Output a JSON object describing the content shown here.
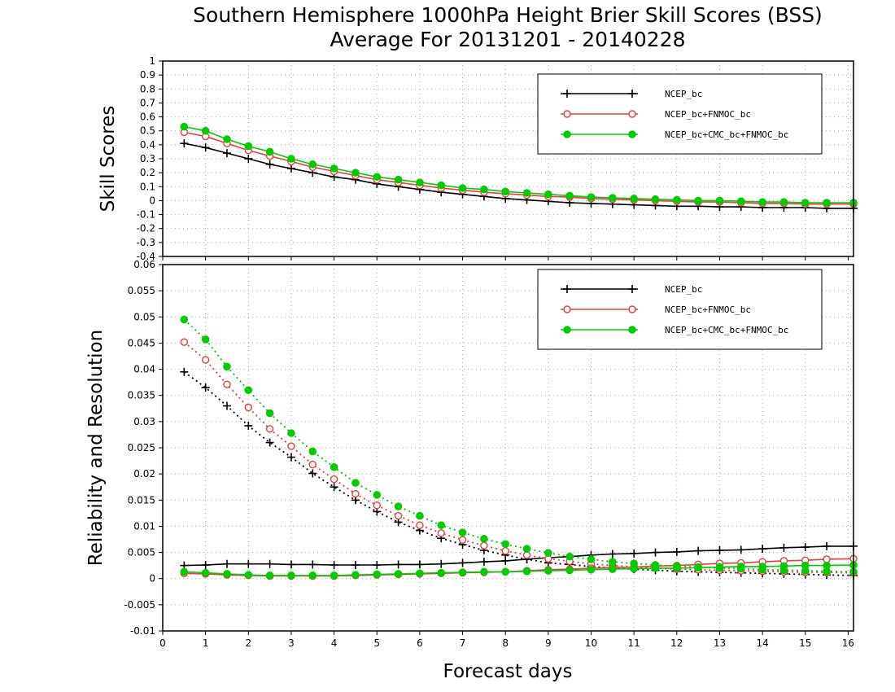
{
  "title": {
    "line1": "Southern Hemisphere 1000hPa Height Brier Skill Scores (BSS)",
    "line2": "Average For 20131201 - 20140228"
  },
  "xlabel": "Forecast days",
  "colors": {
    "ncep": "#000000",
    "fnmoc": "#ee3b3b",
    "cmc": "#00cc00"
  },
  "chart_data": [
    {
      "type": "line",
      "ylabel": "Skill Scores",
      "xlim": [
        0,
        16.125
      ],
      "ylim": [
        -0.4,
        1
      ],
      "yticks": [
        -0.4,
        -0.3,
        -0.2,
        -0.1,
        0,
        0.1,
        0.2,
        0.3,
        0.4,
        0.5,
        0.6,
        0.7,
        0.8,
        0.9,
        1
      ],
      "yticklabels": [
        "-0.4",
        "-0.3",
        "-0.2",
        "-0.1",
        "0",
        "0.1",
        "0.2",
        "0.3",
        "0.4",
        "0.5",
        "0.6",
        "0.7",
        "0.8",
        "0.9",
        "1"
      ],
      "grid": true,
      "legend_position": "top-right",
      "x": [
        0.5,
        1,
        1.5,
        2,
        2.5,
        3,
        3.5,
        4,
        4.5,
        5,
        5.5,
        6,
        6.5,
        7,
        7.5,
        8,
        8.5,
        9,
        9.5,
        10,
        10.5,
        11,
        11.5,
        12,
        12.5,
        13,
        13.5,
        14,
        14.5,
        15,
        15.5,
        16.125
      ],
      "series": [
        {
          "name": "NCEP_bc",
          "marker": "plus",
          "color": "#000000",
          "values": [
            0.41,
            0.38,
            0.34,
            0.3,
            0.26,
            0.23,
            0.2,
            0.17,
            0.15,
            0.12,
            0.1,
            0.08,
            0.06,
            0.045,
            0.03,
            0.015,
            0.005,
            -0.005,
            -0.015,
            -0.02,
            -0.025,
            -0.03,
            -0.035,
            -0.04,
            -0.04,
            -0.045,
            -0.045,
            -0.05,
            -0.05,
            -0.05,
            -0.055,
            -0.055
          ]
        },
        {
          "name": "NCEP_bc+FNMOC_bc",
          "marker": "circle-open",
          "color": "#ee3b3b",
          "values": [
            0.49,
            0.46,
            0.41,
            0.36,
            0.32,
            0.28,
            0.24,
            0.21,
            0.18,
            0.15,
            0.13,
            0.11,
            0.09,
            0.075,
            0.06,
            0.05,
            0.04,
            0.03,
            0.025,
            0.015,
            0.01,
            0.005,
            0.0,
            -0.005,
            -0.01,
            -0.01,
            -0.015,
            -0.02,
            -0.02,
            -0.025,
            -0.025,
            -0.025
          ]
        },
        {
          "name": "NCEP_bc+CMC_bc+FNMOC_bc",
          "marker": "circle-filled",
          "color": "#00cc00",
          "values": [
            0.53,
            0.5,
            0.44,
            0.39,
            0.35,
            0.3,
            0.26,
            0.23,
            0.2,
            0.17,
            0.15,
            0.13,
            0.11,
            0.09,
            0.08,
            0.065,
            0.055,
            0.045,
            0.035,
            0.025,
            0.02,
            0.015,
            0.01,
            0.005,
            0.0,
            0.0,
            -0.005,
            -0.01,
            -0.01,
            -0.015,
            -0.015,
            -0.015
          ]
        }
      ]
    },
    {
      "type": "line",
      "ylabel": "Reliability and Resolution",
      "xlim": [
        0,
        16.125
      ],
      "ylim": [
        -0.01,
        0.06
      ],
      "yticks": [
        -0.01,
        -0.005,
        0,
        0.005,
        0.01,
        0.015,
        0.02,
        0.025,
        0.03,
        0.035,
        0.04,
        0.045,
        0.05,
        0.055,
        0.06
      ],
      "yticklabels": [
        "-0.01",
        "-0.005",
        "0",
        "0.005",
        "0.01",
        "0.015",
        "0.02",
        "0.025",
        "0.03",
        "0.035",
        "0.04",
        "0.045",
        "0.05",
        "0.055",
        "0.06"
      ],
      "xticks": [
        0,
        1,
        2,
        3,
        4,
        5,
        6,
        7,
        8,
        9,
        10,
        11,
        12,
        13,
        14,
        15,
        16
      ],
      "xticklabels": [
        "0",
        "1",
        "2",
        "3",
        "4",
        "5",
        "6",
        "7",
        "8",
        "9",
        "10",
        "11",
        "12",
        "13",
        "14",
        "15",
        "16"
      ],
      "grid": true,
      "legend_position": "top-right",
      "x": [
        0.5,
        1,
        1.5,
        2,
        2.5,
        3,
        3.5,
        4,
        4.5,
        5,
        5.5,
        6,
        6.5,
        7,
        7.5,
        8,
        8.5,
        9,
        9.5,
        10,
        10.5,
        11,
        11.5,
        12,
        12.5,
        13,
        13.5,
        14,
        14.5,
        15,
        15.5,
        16.125
      ],
      "series": [
        {
          "name": "NCEP_bc",
          "component": "resolution",
          "marker": "plus",
          "color": "#000000",
          "dash": "dotted",
          "values": [
            0.0395,
            0.0365,
            0.033,
            0.0292,
            0.026,
            0.0232,
            0.0201,
            0.0175,
            0.015,
            0.0128,
            0.0108,
            0.0092,
            0.0077,
            0.0065,
            0.0054,
            0.0045,
            0.0037,
            0.003,
            0.0027,
            0.0023,
            0.002,
            0.0018,
            0.0016,
            0.0014,
            0.0013,
            0.0012,
            0.0011,
            0.001,
            0.0009,
            0.0008,
            0.0007,
            0.0006
          ]
        },
        {
          "name": "NCEP_bc",
          "component": "reliability",
          "marker": "plus",
          "color": "#000000",
          "dash": "solid",
          "values": [
            0.0025,
            0.0026,
            0.0028,
            0.0028,
            0.0028,
            0.0027,
            0.0027,
            0.0026,
            0.0026,
            0.0026,
            0.0027,
            0.0027,
            0.0028,
            0.003,
            0.0032,
            0.0034,
            0.0037,
            0.004,
            0.0042,
            0.0045,
            0.0047,
            0.0048,
            0.005,
            0.0051,
            0.0053,
            0.0054,
            0.0055,
            0.0057,
            0.0059,
            0.006,
            0.0062,
            0.0062
          ]
        },
        {
          "name": "NCEP_bc+FNMOC_bc",
          "component": "resolution",
          "marker": "circle-open",
          "color": "#ee3b3b",
          "dash": "dotted",
          "values": [
            0.0452,
            0.0418,
            0.0371,
            0.0327,
            0.0286,
            0.0253,
            0.0218,
            0.019,
            0.0162,
            0.014,
            0.012,
            0.0102,
            0.0087,
            0.0074,
            0.0063,
            0.0053,
            0.0045,
            0.0038,
            0.0033,
            0.0028,
            0.0025,
            0.0022,
            0.002,
            0.0018,
            0.0017,
            0.0016,
            0.0015,
            0.0014,
            0.0013,
            0.0012,
            0.0012,
            0.0011
          ]
        },
        {
          "name": "NCEP_bc+FNMOC_bc",
          "component": "reliability",
          "marker": "circle-open",
          "color": "#ee3b3b",
          "dash": "solid",
          "values": [
            0.001,
            0.0009,
            0.0007,
            0.0006,
            0.0005,
            0.0005,
            0.0005,
            0.0005,
            0.0006,
            0.0007,
            0.0008,
            0.0009,
            0.001,
            0.0011,
            0.0012,
            0.0013,
            0.0015,
            0.0017,
            0.0018,
            0.002,
            0.0021,
            0.0022,
            0.0024,
            0.0025,
            0.0027,
            0.0029,
            0.003,
            0.0032,
            0.0034,
            0.0035,
            0.0037,
            0.0038
          ]
        },
        {
          "name": "NCEP_bc+CMC_bc+FNMOC_bc",
          "component": "resolution",
          "marker": "circle-filled",
          "color": "#00cc00",
          "dash": "dotted",
          "values": [
            0.0495,
            0.0457,
            0.0405,
            0.036,
            0.0316,
            0.0278,
            0.0243,
            0.0213,
            0.0183,
            0.016,
            0.0138,
            0.012,
            0.0102,
            0.0088,
            0.0076,
            0.0066,
            0.0057,
            0.0049,
            0.0042,
            0.0037,
            0.0032,
            0.0029,
            0.0026,
            0.0024,
            0.0022,
            0.002,
            0.0019,
            0.0017,
            0.0016,
            0.0015,
            0.0014,
            0.0013
          ]
        },
        {
          "name": "NCEP_bc+CMC_bc+FNMOC_bc",
          "component": "reliability",
          "marker": "circle-filled",
          "color": "#00cc00",
          "dash": "solid",
          "values": [
            0.0013,
            0.0011,
            0.0009,
            0.0007,
            0.0006,
            0.0006,
            0.0006,
            0.0006,
            0.0007,
            0.0008,
            0.0009,
            0.001,
            0.0011,
            0.0012,
            0.0013,
            0.0013,
            0.0014,
            0.0015,
            0.0016,
            0.0017,
            0.0018,
            0.0019,
            0.002,
            0.002,
            0.0021,
            0.0022,
            0.0023,
            0.0023,
            0.0024,
            0.0025,
            0.0025,
            0.0026
          ]
        }
      ]
    }
  ]
}
